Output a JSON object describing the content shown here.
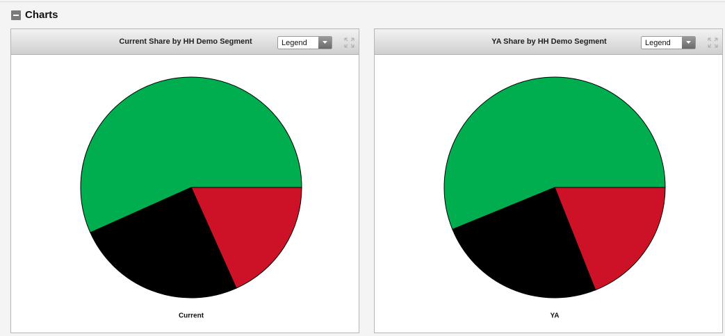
{
  "section_title": "Charts",
  "panels": [
    {
      "dropdown": "Legend"
    },
    {
      "dropdown": "Legend"
    }
  ],
  "chart_data": [
    {
      "type": "pie",
      "title": "Current Share by HH Demo Segment",
      "label": "Current",
      "values": [
        18.3,
        25.0,
        56.7
      ],
      "colors": [
        "#cd1228",
        "#000000",
        "#00ae4f"
      ]
    },
    {
      "type": "pie",
      "title": "YA Share by HH Demo Segment",
      "label": "YA",
      "values": [
        19.0,
        24.8,
        56.2
      ],
      "colors": [
        "#cd1228",
        "#000000",
        "#00ae4f"
      ]
    }
  ]
}
